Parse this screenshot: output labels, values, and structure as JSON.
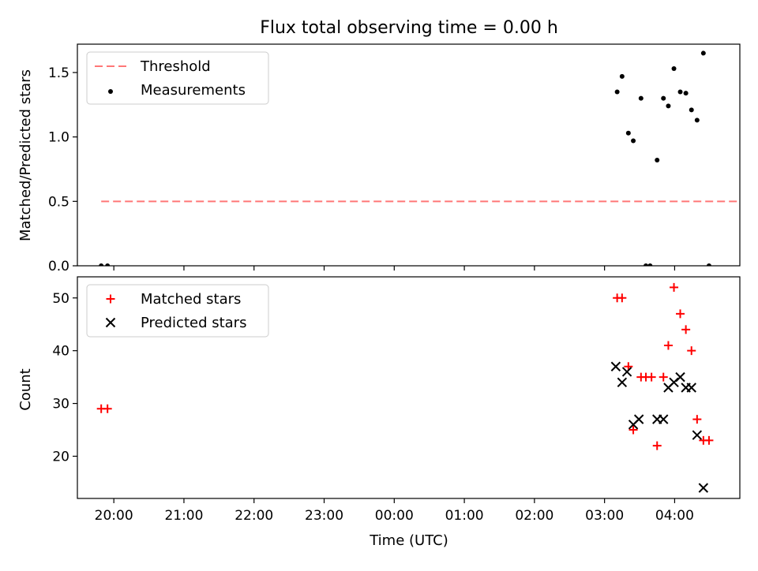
{
  "chart_data": [
    {
      "type": "scatter",
      "title": "Flux total observing time = 0.00 h",
      "xlabel": "",
      "ylabel": "Matched/Predicted stars",
      "ylim": [
        0,
        1.72
      ],
      "yticks": [
        "0.0",
        "0.5",
        "1.0",
        "1.5"
      ],
      "ytick_values": [
        0,
        0.5,
        1.0,
        1.5
      ],
      "legend_position": "top-left",
      "series": [
        {
          "name": "Threshold",
          "kind": "dashed-line",
          "color": "#ff7777",
          "x": [
            19.82,
            28.93
          ],
          "y": [
            0.5,
            0.5
          ]
        },
        {
          "name": "Measurements",
          "kind": "dots",
          "color": "#000000",
          "x": [
            19.82,
            19.91,
            27.18,
            27.25,
            27.34,
            27.41,
            27.52,
            27.59,
            27.65,
            27.75,
            27.84,
            27.91,
            27.99,
            28.08,
            28.16,
            28.24,
            28.32,
            28.41,
            28.49
          ],
          "y": [
            0.0,
            0.0,
            1.35,
            1.47,
            1.03,
            0.97,
            1.3,
            0.0,
            0.0,
            0.82,
            1.3,
            1.24,
            1.53,
            1.35,
            1.34,
            1.21,
            1.13,
            1.65,
            0.0
          ]
        }
      ]
    },
    {
      "type": "scatter",
      "xlabel": "Time (UTC)",
      "ylabel": "Count",
      "ylim": [
        12,
        54
      ],
      "xlim": [
        19.48,
        28.93
      ],
      "yticks": [
        "20",
        "30",
        "40",
        "50"
      ],
      "ytick_values": [
        20,
        30,
        40,
        50
      ],
      "xticks": [
        "20:00",
        "21:00",
        "22:00",
        "23:00",
        "00:00",
        "01:00",
        "02:00",
        "03:00",
        "04:00"
      ],
      "xtick_values": [
        20,
        21,
        22,
        23,
        24,
        25,
        26,
        27,
        28
      ],
      "legend_position": "top-left",
      "series": [
        {
          "name": "Matched stars",
          "marker": "plus",
          "color": "#ff0000",
          "x": [
            19.82,
            19.91,
            27.18,
            27.25,
            27.34,
            27.41,
            27.52,
            27.59,
            27.67,
            27.75,
            27.84,
            27.91,
            27.99,
            28.08,
            28.16,
            28.24,
            28.32,
            28.41,
            28.49
          ],
          "y": [
            29,
            29,
            50,
            50,
            37,
            25,
            35,
            35,
            35,
            22,
            35,
            41,
            52,
            47,
            44,
            40,
            27,
            23,
            23
          ]
        },
        {
          "name": "Predicted stars",
          "marker": "x",
          "color": "#000000",
          "x": [
            27.16,
            27.25,
            27.32,
            27.41,
            27.49,
            27.75,
            27.84,
            27.91,
            27.99,
            28.08,
            28.16,
            28.24,
            28.32,
            28.41
          ],
          "y": [
            37,
            34,
            36,
            26,
            27,
            27,
            27,
            33,
            34,
            35,
            33,
            33,
            24,
            14
          ]
        }
      ]
    }
  ]
}
